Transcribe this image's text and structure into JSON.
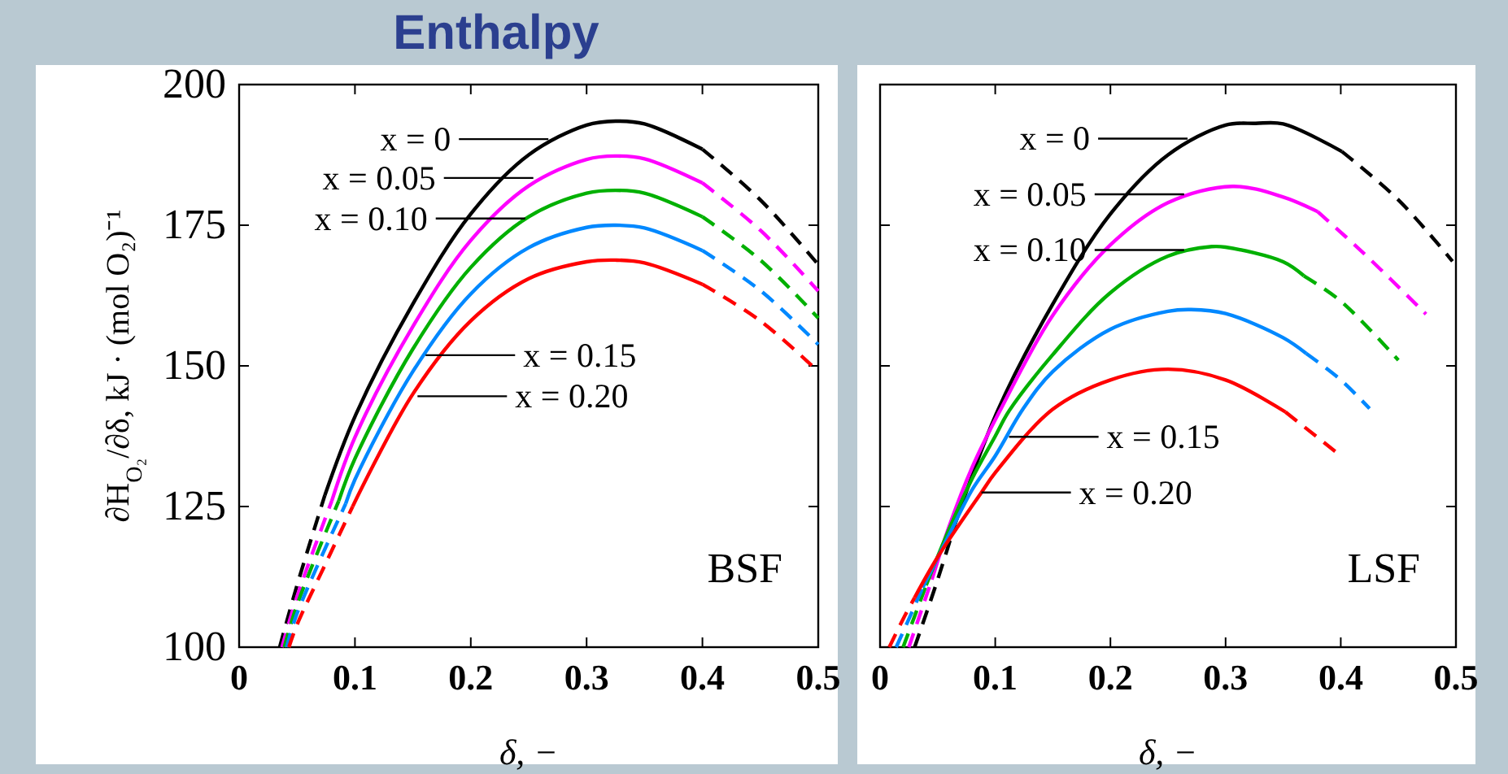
{
  "chart_data": [
    {
      "type": "line",
      "title": "Enthalpy",
      "xlabel": "δ, −",
      "ylabel": "∂H$_{O₂}$/∂δ, kJ · (mol O₂)⁻¹",
      "xlim": [
        0,
        0.5
      ],
      "ylim": [
        100,
        200
      ],
      "xticks": [
        0,
        0.1,
        0.2,
        0.3,
        0.4,
        0.5
      ],
      "yticks": [
        100,
        125,
        150,
        175,
        200
      ],
      "grid": false,
      "series": [
        {
          "color": "#000000",
          "line_style": "dashed",
          "x": [
            0.035,
            0.05,
            0.074
          ],
          "values": [
            100,
            111,
            127
          ]
        },
        {
          "color": "#000000",
          "line_style": "solid",
          "x": [
            0.074,
            0.1,
            0.15,
            0.2,
            0.25,
            0.3,
            0.325,
            0.35,
            0.4
          ],
          "values": [
            127,
            141,
            161,
            177,
            187.5,
            192.8,
            193.5,
            193,
            188.5
          ]
        },
        {
          "color": "#000000",
          "line_style": "dashed",
          "x": [
            0.4,
            0.45,
            0.5
          ],
          "values": [
            188.5,
            179.5,
            168
          ]
        },
        {
          "color": "#ff00ff",
          "line_style": "dashed",
          "x": [
            0.037,
            0.05,
            0.08
          ],
          "values": [
            100,
            109,
            126
          ]
        },
        {
          "color": "#ff00ff",
          "line_style": "solid",
          "x": [
            0.08,
            0.1,
            0.15,
            0.2,
            0.25,
            0.3,
            0.325,
            0.35,
            0.4
          ],
          "values": [
            126,
            137.3,
            157,
            172.3,
            182,
            186.7,
            187.3,
            186.8,
            182.5
          ]
        },
        {
          "color": "#ff00ff",
          "line_style": "dashed",
          "x": [
            0.4,
            0.45,
            0.5
          ],
          "values": [
            182.5,
            174.1,
            163.3
          ]
        },
        {
          "color": "#00b000",
          "line_style": "dashed",
          "x": [
            0.039,
            0.05,
            0.086
          ],
          "values": [
            100,
            107.5,
            126
          ]
        },
        {
          "color": "#00b000",
          "line_style": "solid",
          "x": [
            0.086,
            0.1,
            0.15,
            0.2,
            0.25,
            0.3,
            0.325,
            0.35,
            0.4
          ],
          "values": [
            126,
            133.5,
            153,
            167.5,
            176.5,
            180.7,
            181.2,
            180.7,
            176.5
          ]
        },
        {
          "color": "#00b000",
          "line_style": "dashed",
          "x": [
            0.4,
            0.45,
            0.5
          ],
          "values": [
            176.5,
            168.8,
            158.5
          ]
        },
        {
          "color": "#0088ff",
          "line_style": "dashed",
          "x": [
            0.041,
            0.05,
            0.092
          ],
          "values": [
            100,
            106,
            125.5
          ]
        },
        {
          "color": "#0088ff",
          "line_style": "solid",
          "x": [
            0.092,
            0.1,
            0.15,
            0.2,
            0.25,
            0.3,
            0.325,
            0.35,
            0.4
          ],
          "values": [
            125.5,
            129.8,
            149,
            162.8,
            171,
            174.6,
            175,
            174.5,
            170.5
          ]
        },
        {
          "color": "#0088ff",
          "line_style": "dashed",
          "x": [
            0.4,
            0.45,
            0.5
          ],
          "values": [
            170.5,
            163.4,
            153.8
          ]
        },
        {
          "color": "#ff0000",
          "line_style": "dashed",
          "x": [
            0.043,
            0.05,
            0.075,
            0.098
          ],
          "values": [
            100,
            104,
            115,
            125
          ]
        },
        {
          "color": "#ff0000",
          "line_style": "solid",
          "x": [
            0.098,
            0.15,
            0.2,
            0.25,
            0.3,
            0.325,
            0.35,
            0.4
          ],
          "values": [
            125,
            145,
            158,
            165.5,
            168.5,
            168.8,
            168.3,
            164.5
          ]
        },
        {
          "color": "#ff0000",
          "line_style": "dashed",
          "x": [
            0.4,
            0.45,
            0.5
          ],
          "values": [
            164.5,
            158,
            149
          ]
        }
      ],
      "annotations": [
        {
          "text": "x = 0",
          "x": 0.267,
          "y": 190.3
        },
        {
          "text": "x = 0.05",
          "x": 0.254,
          "y": 183.4
        },
        {
          "text": "x = 0.10",
          "x": 0.247,
          "y": 176.2
        },
        {
          "text": "x = 0.15",
          "x": 0.161,
          "y": 151.9
        },
        {
          "text": "x = 0.20",
          "x": 0.154,
          "y": 144.6
        },
        "BSF"
      ]
    },
    {
      "type": "line",
      "xlabel": "δ, −",
      "xlim": [
        0,
        0.5
      ],
      "ylim": [
        100,
        200
      ],
      "xticks": [
        0,
        0.1,
        0.2,
        0.3,
        0.4,
        0.5
      ],
      "yticks": [
        100,
        125,
        150,
        175,
        200
      ],
      "tick_labels": "x",
      "grid": false,
      "series": [
        {
          "color": "#000000",
          "line_style": "dashed",
          "x": [
            0.03,
            0.05,
            0.065
          ],
          "values": [
            100,
            112,
            121.8
          ]
        },
        {
          "color": "#000000",
          "line_style": "solid",
          "x": [
            0.065,
            0.102,
            0.15,
            0.2,
            0.25,
            0.3,
            0.326,
            0.35,
            0.401
          ],
          "values": [
            121.8,
            142,
            161,
            177,
            187.5,
            192.8,
            193.1,
            193,
            188.1
          ]
        },
        {
          "color": "#000000",
          "line_style": "dashed",
          "x": [
            0.401,
            0.45,
            0.497
          ],
          "values": [
            188.1,
            179.5,
            168.6
          ]
        },
        {
          "color": "#ff00ff",
          "line_style": "dashed",
          "x": [
            0.025,
            0.035,
            0.045
          ],
          "values": [
            100,
            106,
            112
          ]
        },
        {
          "color": "#ff00ff",
          "line_style": "solid",
          "x": [
            0.045,
            0.06,
            0.08,
            0.104,
            0.15,
            0.2,
            0.25,
            0.306,
            0.35,
            0.38
          ],
          "values": [
            112,
            121.5,
            132,
            142,
            159,
            171.5,
            179,
            181.9,
            180,
            177.4
          ]
        },
        {
          "color": "#ff00ff",
          "line_style": "dashed",
          "x": [
            0.38,
            0.42,
            0.474
          ],
          "values": [
            177.4,
            170,
            159.2
          ]
        },
        {
          "color": "#00b000",
          "line_style": "dashed",
          "x": [
            0.02,
            0.03,
            0.04
          ],
          "values": [
            100,
            105.5,
            111
          ]
        },
        {
          "color": "#00b000",
          "line_style": "solid",
          "x": [
            0.04,
            0.06,
            0.08,
            0.1,
            0.112,
            0.15,
            0.2,
            0.25,
            0.288,
            0.3,
            0.35,
            0.368
          ],
          "values": [
            111,
            121,
            130,
            137.5,
            142,
            152,
            163,
            169.5,
            171.2,
            171.1,
            168.5,
            166
          ]
        },
        {
          "color": "#00b000",
          "line_style": "dashed",
          "x": [
            0.368,
            0.4,
            0.45
          ],
          "values": [
            166,
            161.5,
            151
          ]
        },
        {
          "color": "#0088ff",
          "line_style": "dashed",
          "x": [
            0.014,
            0.025,
            0.037
          ],
          "values": [
            100,
            105,
            110.6
          ]
        },
        {
          "color": "#0088ff",
          "line_style": "solid",
          "x": [
            0.037,
            0.06,
            0.08,
            0.1,
            0.124,
            0.15,
            0.2,
            0.25,
            0.27,
            0.3,
            0.35,
            0.37
          ],
          "values": [
            110.6,
            120,
            128,
            134,
            142.3,
            149,
            156.5,
            159.7,
            160,
            159.3,
            155,
            152.2
          ]
        },
        {
          "color": "#0088ff",
          "line_style": "dashed",
          "x": [
            0.37,
            0.4,
            0.425
          ],
          "values": [
            152.2,
            147.5,
            142.4
          ]
        },
        {
          "color": "#ff0000",
          "line_style": "dashed",
          "x": [
            0.008,
            0.02,
            0.03
          ],
          "values": [
            100,
            105,
            108.8
          ]
        },
        {
          "color": "#ff0000",
          "line_style": "solid",
          "x": [
            0.03,
            0.05,
            0.088,
            0.1,
            0.15,
            0.2,
            0.25,
            0.3,
            0.352
          ],
          "values": [
            108.8,
            116,
            127.5,
            131,
            142.3,
            147.5,
            149.4,
            147.5,
            141.8
          ]
        },
        {
          "color": "#ff0000",
          "line_style": "dashed",
          "x": [
            0.352,
            0.397
          ],
          "values": [
            141.8,
            134.5
          ]
        }
      ],
      "annotations": [
        {
          "text": "x = 0",
          "x": 0.267,
          "y": 190.4
        },
        {
          "text": "x = 0.05",
          "x": 0.264,
          "y": 180.5
        },
        {
          "text": "x = 0.10",
          "x": 0.264,
          "y": 170.6
        },
        {
          "text": "x = 0.15",
          "x": 0.112,
          "y": 137.4
        },
        {
          "text": "x = 0.20",
          "x": 0.088,
          "y": 127.5
        },
        "LSF"
      ]
    }
  ]
}
